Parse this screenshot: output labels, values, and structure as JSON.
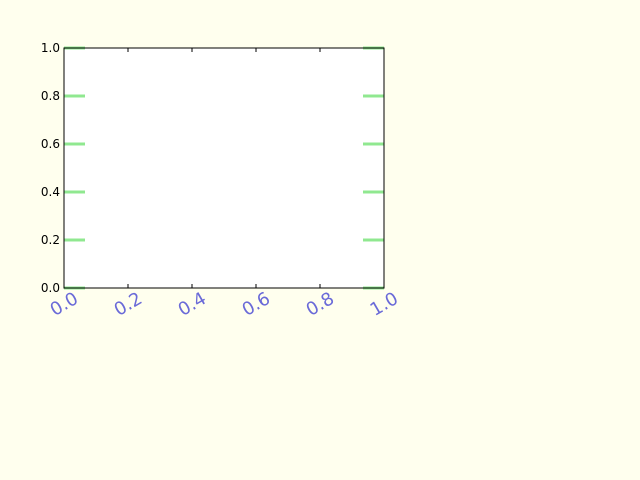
{
  "chart_data": {
    "type": "line",
    "title": "",
    "xlabel": "",
    "ylabel": "",
    "xlim": [
      0.0,
      1.0
    ],
    "ylim": [
      0.0,
      1.0
    ],
    "xticks": [
      "0.0",
      "0.2",
      "0.4",
      "0.6",
      "0.8",
      "1.0"
    ],
    "yticks": [
      "0.0",
      "0.2",
      "0.4",
      "0.6",
      "0.8",
      "1.0"
    ],
    "series": [],
    "grid": false,
    "legend": "none"
  },
  "colors": {
    "figure_background": "#ffffee",
    "plot_background": "#ffffff",
    "axes_edge": "#000000",
    "xtick_label": "#6a6ad8",
    "ytick_mark": "#90e890",
    "xtick_mark": "#000000"
  }
}
